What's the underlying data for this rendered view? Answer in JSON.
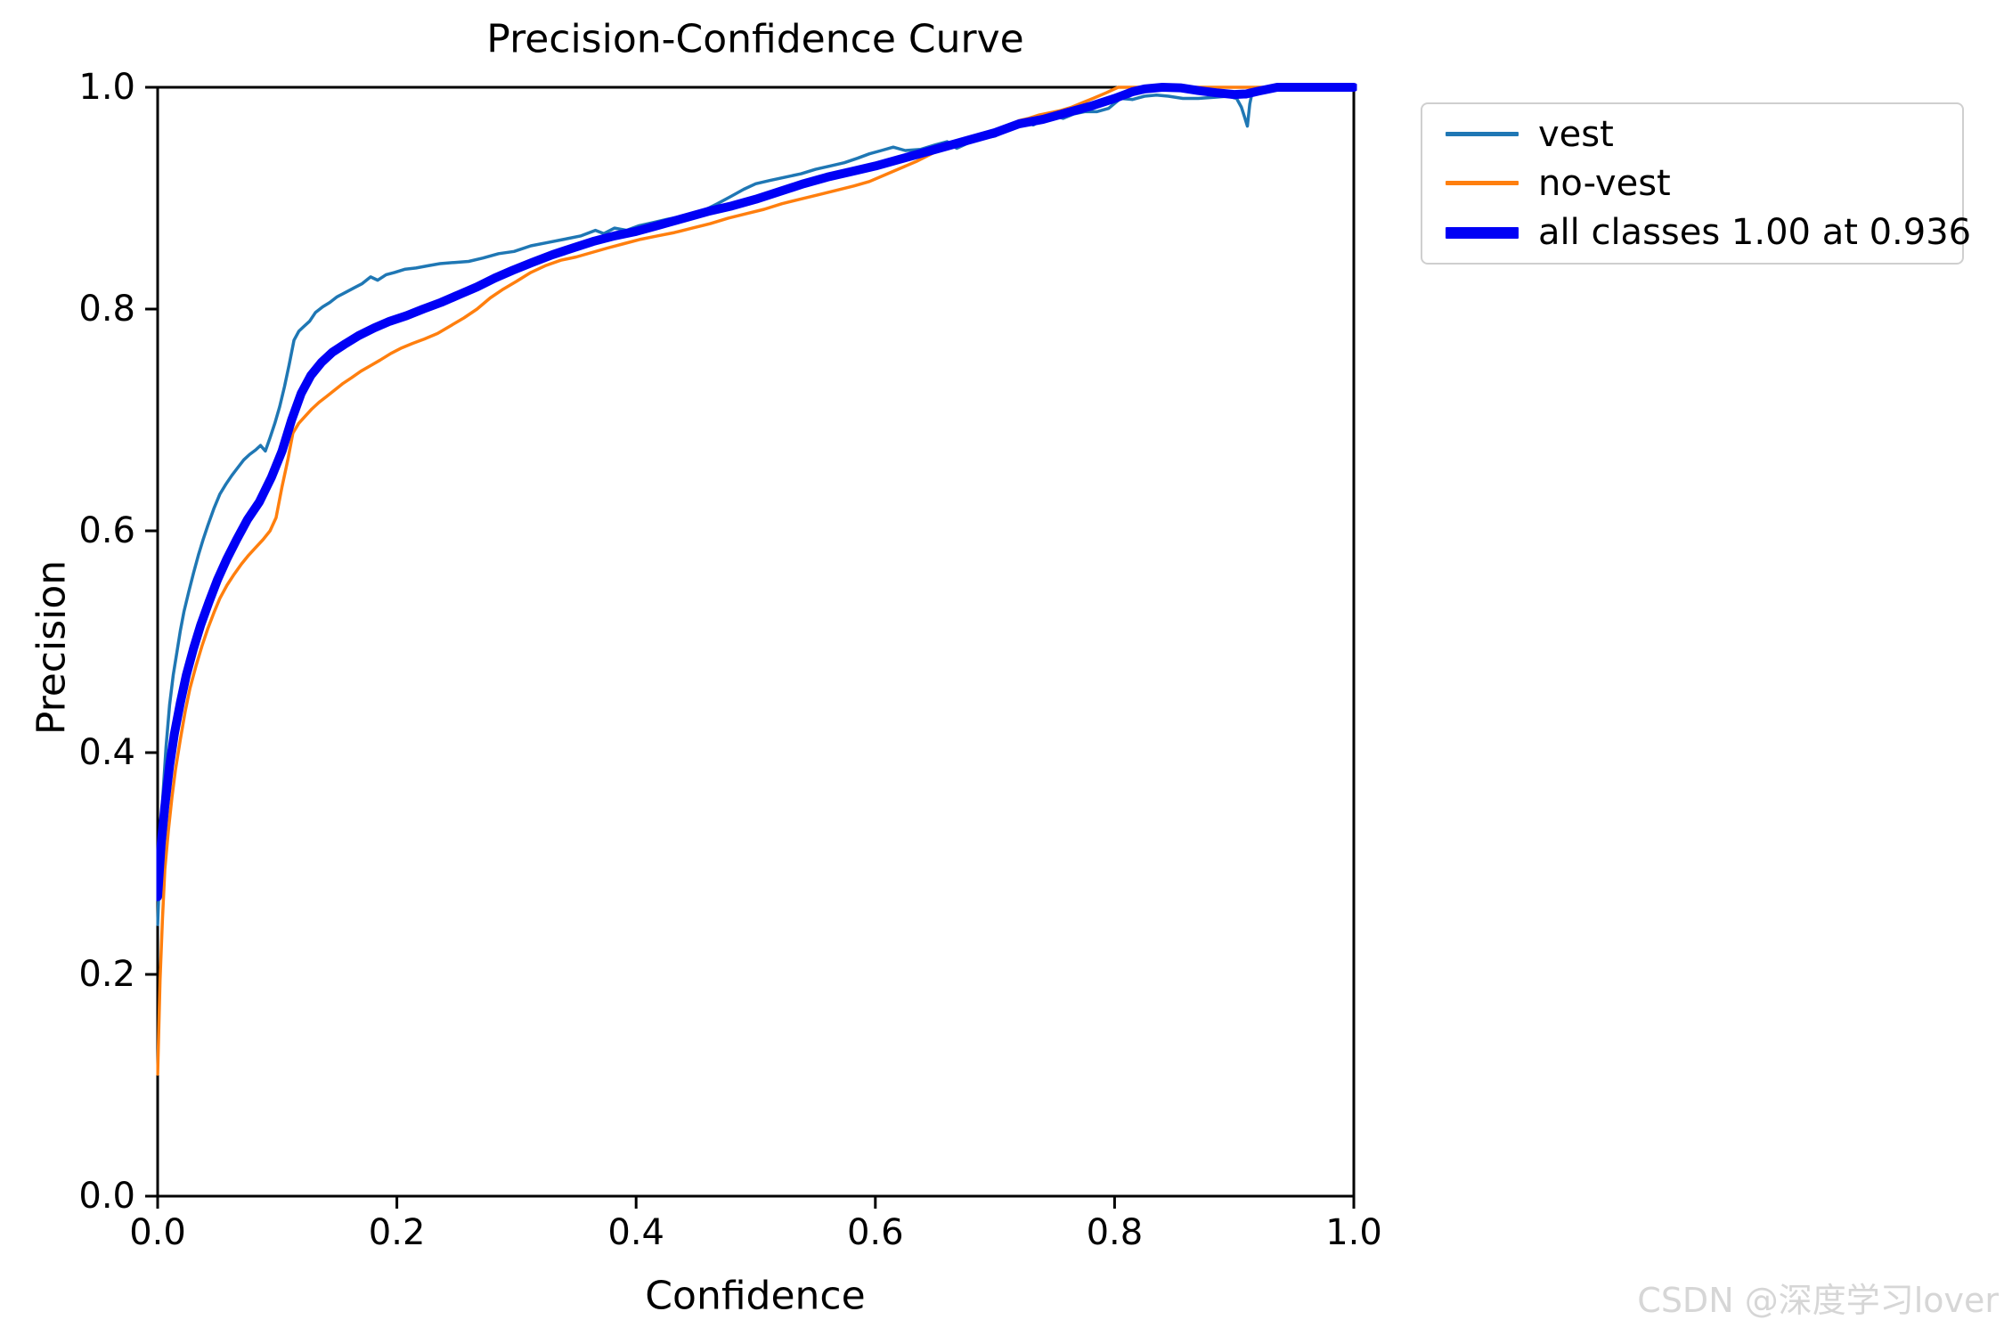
{
  "watermark": {
    "text": "CSDN @深度学习lover"
  },
  "chart_data": {
    "type": "line",
    "title": "Precision-Confidence Curve",
    "xlabel": "Confidence",
    "ylabel": "Precision",
    "xlim": [
      0,
      1
    ],
    "ylim": [
      0,
      1
    ],
    "x_ticks": [
      "0.0",
      "0.2",
      "0.4",
      "0.6",
      "0.8",
      "1.0"
    ],
    "y_ticks": [
      "0.0",
      "0.2",
      "0.4",
      "0.6",
      "0.8",
      "1.0"
    ],
    "grid": false,
    "legend_position": "outside-upper-right",
    "series": [
      {
        "name": "vest",
        "color": "#1f77b4",
        "line_width": 3.5,
        "points": [
          [
            0.0,
            0.245
          ],
          [
            0.002,
            0.305
          ],
          [
            0.004,
            0.355
          ],
          [
            0.007,
            0.405
          ],
          [
            0.01,
            0.443
          ],
          [
            0.013,
            0.47
          ],
          [
            0.016,
            0.49
          ],
          [
            0.019,
            0.51
          ],
          [
            0.022,
            0.527
          ],
          [
            0.026,
            0.545
          ],
          [
            0.03,
            0.562
          ],
          [
            0.034,
            0.578
          ],
          [
            0.038,
            0.592
          ],
          [
            0.042,
            0.605
          ],
          [
            0.047,
            0.62
          ],
          [
            0.052,
            0.633
          ],
          [
            0.057,
            0.642
          ],
          [
            0.062,
            0.65
          ],
          [
            0.067,
            0.657
          ],
          [
            0.072,
            0.664
          ],
          [
            0.077,
            0.669
          ],
          [
            0.082,
            0.673
          ],
          [
            0.086,
            0.677
          ],
          [
            0.09,
            0.672
          ],
          [
            0.094,
            0.684
          ],
          [
            0.098,
            0.697
          ],
          [
            0.102,
            0.712
          ],
          [
            0.106,
            0.73
          ],
          [
            0.11,
            0.75
          ],
          [
            0.114,
            0.772
          ],
          [
            0.118,
            0.78
          ],
          [
            0.122,
            0.784
          ],
          [
            0.127,
            0.789
          ],
          [
            0.132,
            0.797
          ],
          [
            0.138,
            0.802
          ],
          [
            0.144,
            0.806
          ],
          [
            0.15,
            0.811
          ],
          [
            0.157,
            0.815
          ],
          [
            0.164,
            0.819
          ],
          [
            0.171,
            0.823
          ],
          [
            0.178,
            0.829
          ],
          [
            0.184,
            0.826
          ],
          [
            0.191,
            0.831
          ],
          [
            0.198,
            0.833
          ],
          [
            0.207,
            0.836
          ],
          [
            0.216,
            0.837
          ],
          [
            0.226,
            0.839
          ],
          [
            0.236,
            0.841
          ],
          [
            0.248,
            0.842
          ],
          [
            0.26,
            0.843
          ],
          [
            0.272,
            0.846
          ],
          [
            0.285,
            0.85
          ],
          [
            0.298,
            0.852
          ],
          [
            0.312,
            0.857
          ],
          [
            0.326,
            0.86
          ],
          [
            0.34,
            0.863
          ],
          [
            0.354,
            0.866
          ],
          [
            0.366,
            0.871
          ],
          [
            0.373,
            0.868
          ],
          [
            0.382,
            0.873
          ],
          [
            0.392,
            0.871
          ],
          [
            0.402,
            0.875
          ],
          [
            0.414,
            0.878
          ],
          [
            0.426,
            0.881
          ],
          [
            0.44,
            0.884
          ],
          [
            0.455,
            0.888
          ],
          [
            0.468,
            0.895
          ],
          [
            0.48,
            0.902
          ],
          [
            0.49,
            0.908
          ],
          [
            0.5,
            0.913
          ],
          [
            0.512,
            0.916
          ],
          [
            0.525,
            0.919
          ],
          [
            0.538,
            0.922
          ],
          [
            0.55,
            0.926
          ],
          [
            0.562,
            0.929
          ],
          [
            0.574,
            0.932
          ],
          [
            0.585,
            0.936
          ],
          [
            0.595,
            0.94
          ],
          [
            0.605,
            0.943
          ],
          [
            0.615,
            0.946
          ],
          [
            0.625,
            0.943
          ],
          [
            0.638,
            0.944
          ],
          [
            0.65,
            0.948
          ],
          [
            0.66,
            0.951
          ],
          [
            0.668,
            0.945
          ],
          [
            0.678,
            0.95
          ],
          [
            0.69,
            0.954
          ],
          [
            0.7,
            0.956
          ],
          [
            0.708,
            0.96
          ],
          [
            0.716,
            0.966
          ],
          [
            0.724,
            0.969
          ],
          [
            0.732,
            0.966
          ],
          [
            0.74,
            0.971
          ],
          [
            0.748,
            0.975
          ],
          [
            0.757,
            0.972
          ],
          [
            0.766,
            0.976
          ],
          [
            0.775,
            0.978
          ],
          [
            0.785,
            0.978
          ],
          [
            0.795,
            0.981
          ],
          [
            0.805,
            0.99
          ],
          [
            0.815,
            0.989
          ],
          [
            0.825,
            0.992
          ],
          [
            0.835,
            0.993
          ],
          [
            0.845,
            0.992
          ],
          [
            0.857,
            0.99
          ],
          [
            0.87,
            0.99
          ],
          [
            0.883,
            0.991
          ],
          [
            0.895,
            0.992
          ],
          [
            0.902,
            0.99
          ],
          [
            0.906,
            0.982
          ],
          [
            0.909,
            0.972
          ],
          [
            0.911,
            0.965
          ],
          [
            0.913,
            0.985
          ],
          [
            0.915,
            0.995
          ],
          [
            0.92,
            0.998
          ],
          [
            0.93,
            0.999
          ],
          [
            0.95,
            1.0
          ],
          [
            1.0,
            1.0
          ]
        ]
      },
      {
        "name": "no-vest",
        "color": "#ff7f0e",
        "line_width": 3.5,
        "points": [
          [
            0.0,
            0.11
          ],
          [
            0.002,
            0.195
          ],
          [
            0.004,
            0.25
          ],
          [
            0.006,
            0.295
          ],
          [
            0.009,
            0.33
          ],
          [
            0.012,
            0.36
          ],
          [
            0.015,
            0.385
          ],
          [
            0.019,
            0.412
          ],
          [
            0.023,
            0.437
          ],
          [
            0.027,
            0.458
          ],
          [
            0.032,
            0.478
          ],
          [
            0.037,
            0.496
          ],
          [
            0.042,
            0.512
          ],
          [
            0.047,
            0.526
          ],
          [
            0.052,
            0.539
          ],
          [
            0.058,
            0.551
          ],
          [
            0.064,
            0.561
          ],
          [
            0.07,
            0.57
          ],
          [
            0.076,
            0.578
          ],
          [
            0.082,
            0.585
          ],
          [
            0.088,
            0.592
          ],
          [
            0.094,
            0.6
          ],
          [
            0.099,
            0.612
          ],
          [
            0.104,
            0.64
          ],
          [
            0.109,
            0.665
          ],
          [
            0.113,
            0.688
          ],
          [
            0.118,
            0.697
          ],
          [
            0.123,
            0.703
          ],
          [
            0.129,
            0.71
          ],
          [
            0.135,
            0.716
          ],
          [
            0.141,
            0.721
          ],
          [
            0.148,
            0.727
          ],
          [
            0.155,
            0.733
          ],
          [
            0.162,
            0.738
          ],
          [
            0.17,
            0.744
          ],
          [
            0.178,
            0.749
          ],
          [
            0.186,
            0.754
          ],
          [
            0.195,
            0.76
          ],
          [
            0.204,
            0.765
          ],
          [
            0.213,
            0.769
          ],
          [
            0.223,
            0.773
          ],
          [
            0.234,
            0.778
          ],
          [
            0.245,
            0.785
          ],
          [
            0.256,
            0.792
          ],
          [
            0.267,
            0.8
          ],
          [
            0.278,
            0.81
          ],
          [
            0.289,
            0.818
          ],
          [
            0.3,
            0.825
          ],
          [
            0.312,
            0.833
          ],
          [
            0.324,
            0.839
          ],
          [
            0.337,
            0.844
          ],
          [
            0.35,
            0.847
          ],
          [
            0.363,
            0.851
          ],
          [
            0.376,
            0.855
          ],
          [
            0.39,
            0.859
          ],
          [
            0.404,
            0.863
          ],
          [
            0.418,
            0.866
          ],
          [
            0.432,
            0.869
          ],
          [
            0.447,
            0.873
          ],
          [
            0.462,
            0.877
          ],
          [
            0.477,
            0.882
          ],
          [
            0.492,
            0.886
          ],
          [
            0.507,
            0.89
          ],
          [
            0.522,
            0.895
          ],
          [
            0.537,
            0.899
          ],
          [
            0.552,
            0.903
          ],
          [
            0.567,
            0.907
          ],
          [
            0.582,
            0.911
          ],
          [
            0.595,
            0.915
          ],
          [
            0.608,
            0.921
          ],
          [
            0.621,
            0.927
          ],
          [
            0.634,
            0.933
          ],
          [
            0.647,
            0.94
          ],
          [
            0.659,
            0.946
          ],
          [
            0.67,
            0.951
          ],
          [
            0.681,
            0.955
          ],
          [
            0.692,
            0.959
          ],
          [
            0.703,
            0.961
          ],
          [
            0.712,
            0.964
          ],
          [
            0.72,
            0.97
          ],
          [
            0.728,
            0.972
          ],
          [
            0.737,
            0.975
          ],
          [
            0.746,
            0.977
          ],
          [
            0.755,
            0.979
          ],
          [
            0.764,
            0.982
          ],
          [
            0.773,
            0.986
          ],
          [
            0.782,
            0.99
          ],
          [
            0.793,
            0.995
          ],
          [
            0.803,
            1.0
          ],
          [
            0.82,
            1.0
          ],
          [
            0.85,
            1.0
          ],
          [
            0.9,
            1.0
          ],
          [
            1.0,
            1.0
          ]
        ]
      },
      {
        "name": "all classes 1.00 at 0.936",
        "color": "#0000f5",
        "line_width": 10,
        "points": [
          [
            0.0,
            0.27
          ],
          [
            0.003,
            0.318
          ],
          [
            0.006,
            0.352
          ],
          [
            0.01,
            0.388
          ],
          [
            0.014,
            0.417
          ],
          [
            0.019,
            0.445
          ],
          [
            0.024,
            0.47
          ],
          [
            0.03,
            0.494
          ],
          [
            0.036,
            0.515
          ],
          [
            0.043,
            0.536
          ],
          [
            0.05,
            0.556
          ],
          [
            0.058,
            0.575
          ],
          [
            0.066,
            0.592
          ],
          [
            0.075,
            0.61
          ],
          [
            0.085,
            0.626
          ],
          [
            0.095,
            0.648
          ],
          [
            0.104,
            0.672
          ],
          [
            0.112,
            0.7
          ],
          [
            0.12,
            0.724
          ],
          [
            0.128,
            0.74
          ],
          [
            0.137,
            0.752
          ],
          [
            0.146,
            0.761
          ],
          [
            0.156,
            0.768
          ],
          [
            0.168,
            0.776
          ],
          [
            0.181,
            0.783
          ],
          [
            0.194,
            0.789
          ],
          [
            0.208,
            0.794
          ],
          [
            0.222,
            0.8
          ],
          [
            0.237,
            0.806
          ],
          [
            0.252,
            0.813
          ],
          [
            0.267,
            0.82
          ],
          [
            0.282,
            0.828
          ],
          [
            0.297,
            0.835
          ],
          [
            0.313,
            0.842
          ],
          [
            0.33,
            0.849
          ],
          [
            0.347,
            0.855
          ],
          [
            0.364,
            0.861
          ],
          [
            0.382,
            0.866
          ],
          [
            0.4,
            0.87
          ],
          [
            0.42,
            0.876
          ],
          [
            0.44,
            0.882
          ],
          [
            0.46,
            0.888
          ],
          [
            0.48,
            0.893
          ],
          [
            0.5,
            0.899
          ],
          [
            0.52,
            0.906
          ],
          [
            0.54,
            0.913
          ],
          [
            0.56,
            0.919
          ],
          [
            0.58,
            0.924
          ],
          [
            0.6,
            0.929
          ],
          [
            0.62,
            0.935
          ],
          [
            0.64,
            0.941
          ],
          [
            0.66,
            0.947
          ],
          [
            0.68,
            0.953
          ],
          [
            0.7,
            0.959
          ],
          [
            0.72,
            0.967
          ],
          [
            0.74,
            0.971
          ],
          [
            0.76,
            0.977
          ],
          [
            0.78,
            0.983
          ],
          [
            0.8,
            0.99
          ],
          [
            0.815,
            0.996
          ],
          [
            0.825,
            0.9985
          ],
          [
            0.84,
            1.0
          ],
          [
            0.855,
            0.9995
          ],
          [
            0.87,
            0.997
          ],
          [
            0.885,
            0.995
          ],
          [
            0.9,
            0.9935
          ],
          [
            0.91,
            0.994
          ],
          [
            0.92,
            0.9965
          ],
          [
            0.936,
            1.0
          ],
          [
            0.96,
            1.0
          ],
          [
            1.0,
            1.0
          ]
        ]
      }
    ]
  }
}
